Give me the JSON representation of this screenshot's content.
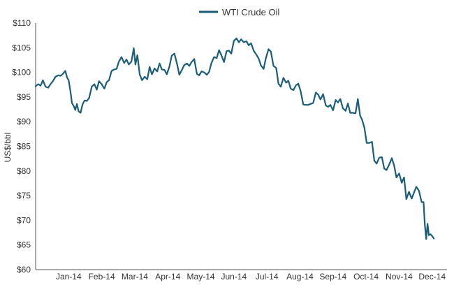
{
  "chart_data": {
    "type": "line",
    "title": "",
    "ylabel": "US$/bbl",
    "xlabel": "",
    "ylim": [
      60,
      110
    ],
    "legend_position": "top-center",
    "grid": false,
    "y_ticks": [
      "$110",
      "$105",
      "$100",
      "$95",
      "$90",
      "$85",
      "$80",
      "$75",
      "$70",
      "$65",
      "$60"
    ],
    "y_tick_values": [
      110,
      105,
      100,
      95,
      90,
      85,
      80,
      75,
      70,
      65,
      60
    ],
    "x_ticks": [
      "Jan-14",
      "Feb-14",
      "Mar-14",
      "Apr-14",
      "May-14",
      "Jun-14",
      "Jul-14",
      "Aug-14",
      "Sep-14",
      "Oct-14",
      "Nov-14",
      "Dec-14"
    ],
    "x_tick_positions": [
      1,
      2,
      3,
      4,
      5,
      6,
      7,
      8,
      9,
      10,
      11,
      12
    ],
    "x_range": [
      0,
      12.45
    ],
    "colors": {
      "series": "#1a5e7a",
      "axis": "#555555"
    },
    "series": [
      {
        "name": "WTI Crude Oil",
        "x": [
          0.0,
          0.08,
          0.15,
          0.22,
          0.3,
          0.38,
          0.45,
          0.52,
          0.6,
          0.68,
          0.76,
          0.84,
          0.9,
          0.95,
          1.0,
          1.05,
          1.1,
          1.15,
          1.2,
          1.25,
          1.3,
          1.36,
          1.42,
          1.48,
          1.55,
          1.62,
          1.7,
          1.78,
          1.85,
          1.92,
          2.0,
          2.08,
          2.15,
          2.22,
          2.3,
          2.38,
          2.45,
          2.52,
          2.6,
          2.68,
          2.75,
          2.82,
          2.9,
          2.97,
          3.02,
          3.08,
          3.15,
          3.22,
          3.3,
          3.38,
          3.45,
          3.52,
          3.6,
          3.68,
          3.75,
          3.82,
          3.9,
          3.97,
          4.05,
          4.12,
          4.2,
          4.28,
          4.35,
          4.42,
          4.5,
          4.58,
          4.65,
          4.72,
          4.8,
          4.88,
          4.95,
          5.02,
          5.1,
          5.18,
          5.25,
          5.32,
          5.4,
          5.48,
          5.55,
          5.62,
          5.7,
          5.78,
          5.85,
          5.92,
          6.0,
          6.08,
          6.15,
          6.22,
          6.3,
          6.38,
          6.45,
          6.52,
          6.6,
          6.68,
          6.75,
          6.82,
          6.9,
          6.97,
          7.05,
          7.12,
          7.2,
          7.28,
          7.35,
          7.42,
          7.5,
          7.58,
          7.65,
          7.72,
          7.8,
          7.88,
          7.95,
          8.02,
          8.1,
          8.18,
          8.25,
          8.32,
          8.4,
          8.48,
          8.55,
          8.62,
          8.7,
          8.78,
          8.85,
          8.92,
          9.0,
          9.08,
          9.15,
          9.22,
          9.3,
          9.38,
          9.45,
          9.52,
          9.6,
          9.68,
          9.75,
          9.82,
          9.88,
          9.95,
          10.02,
          10.1,
          10.18,
          10.25,
          10.32,
          10.4,
          10.48,
          10.55,
          10.62,
          10.7,
          10.78,
          10.85,
          10.92,
          11.0,
          11.08,
          11.15,
          11.22,
          11.3,
          11.38,
          11.45,
          11.52,
          11.6,
          11.68,
          11.74,
          11.78,
          11.82,
          11.86,
          11.9,
          11.95,
          12.0,
          12.05
        ],
        "values": [
          97.2,
          97.6,
          97.3,
          98.4,
          97.1,
          96.9,
          97.6,
          98.2,
          99.1,
          99.4,
          99.3,
          99.8,
          100.3,
          99.0,
          98.4,
          96.3,
          93.8,
          93.2,
          92.4,
          93.6,
          92.1,
          91.8,
          93.5,
          94.3,
          94.2,
          94.8,
          97.1,
          97.6,
          96.5,
          98.2,
          97.6,
          96.7,
          98.0,
          98.4,
          100.3,
          100.6,
          100.7,
          102.2,
          103.1,
          101.9,
          102.6,
          101.6,
          102.2,
          104.9,
          101.6,
          103.5,
          99.6,
          98.4,
          99.1,
          98.6,
          101.1,
          99.6,
          100.8,
          100.2,
          101.8,
          100.6,
          100.5,
          99.6,
          101.2,
          103.4,
          103.8,
          101.7,
          99.5,
          100.4,
          101.5,
          101.8,
          101.3,
          102.1,
          102.7,
          99.7,
          99.4,
          100.2,
          100.0,
          99.5,
          100.1,
          101.9,
          103.1,
          102.9,
          104.5,
          103.5,
          102.1,
          104.3,
          104.4,
          103.8,
          106.4,
          106.9,
          106.1,
          106.7,
          106.1,
          106.3,
          105.5,
          105.9,
          104.4,
          103.6,
          102.8,
          101.4,
          100.7,
          102.9,
          104.7,
          104.2,
          101.3,
          100.9,
          97.7,
          97.1,
          98.9,
          97.9,
          98.3,
          96.7,
          96.4,
          97.4,
          97.7,
          96.2,
          93.5,
          93.4,
          93.4,
          93.6,
          93.8,
          95.9,
          95.5,
          94.5,
          95.6,
          93.3,
          93.0,
          93.4,
          92.3,
          94.4,
          93.9,
          94.6,
          92.7,
          92.2,
          93.7,
          91.8,
          91.8,
          91.7,
          94.6,
          91.2,
          90.4,
          88.8,
          85.7,
          85.7,
          85.9,
          82.1,
          81.5,
          82.7,
          82.8,
          80.5,
          80.2,
          81.3,
          82.6,
          81.1,
          78.7,
          79.5,
          77.6,
          78.7,
          74.3,
          75.8,
          74.4,
          75.6,
          76.8,
          76.0,
          73.7,
          73.7,
          69.0,
          66.2,
          69.3,
          67.0,
          67.2,
          66.8,
          66.3
        ]
      }
    ]
  }
}
